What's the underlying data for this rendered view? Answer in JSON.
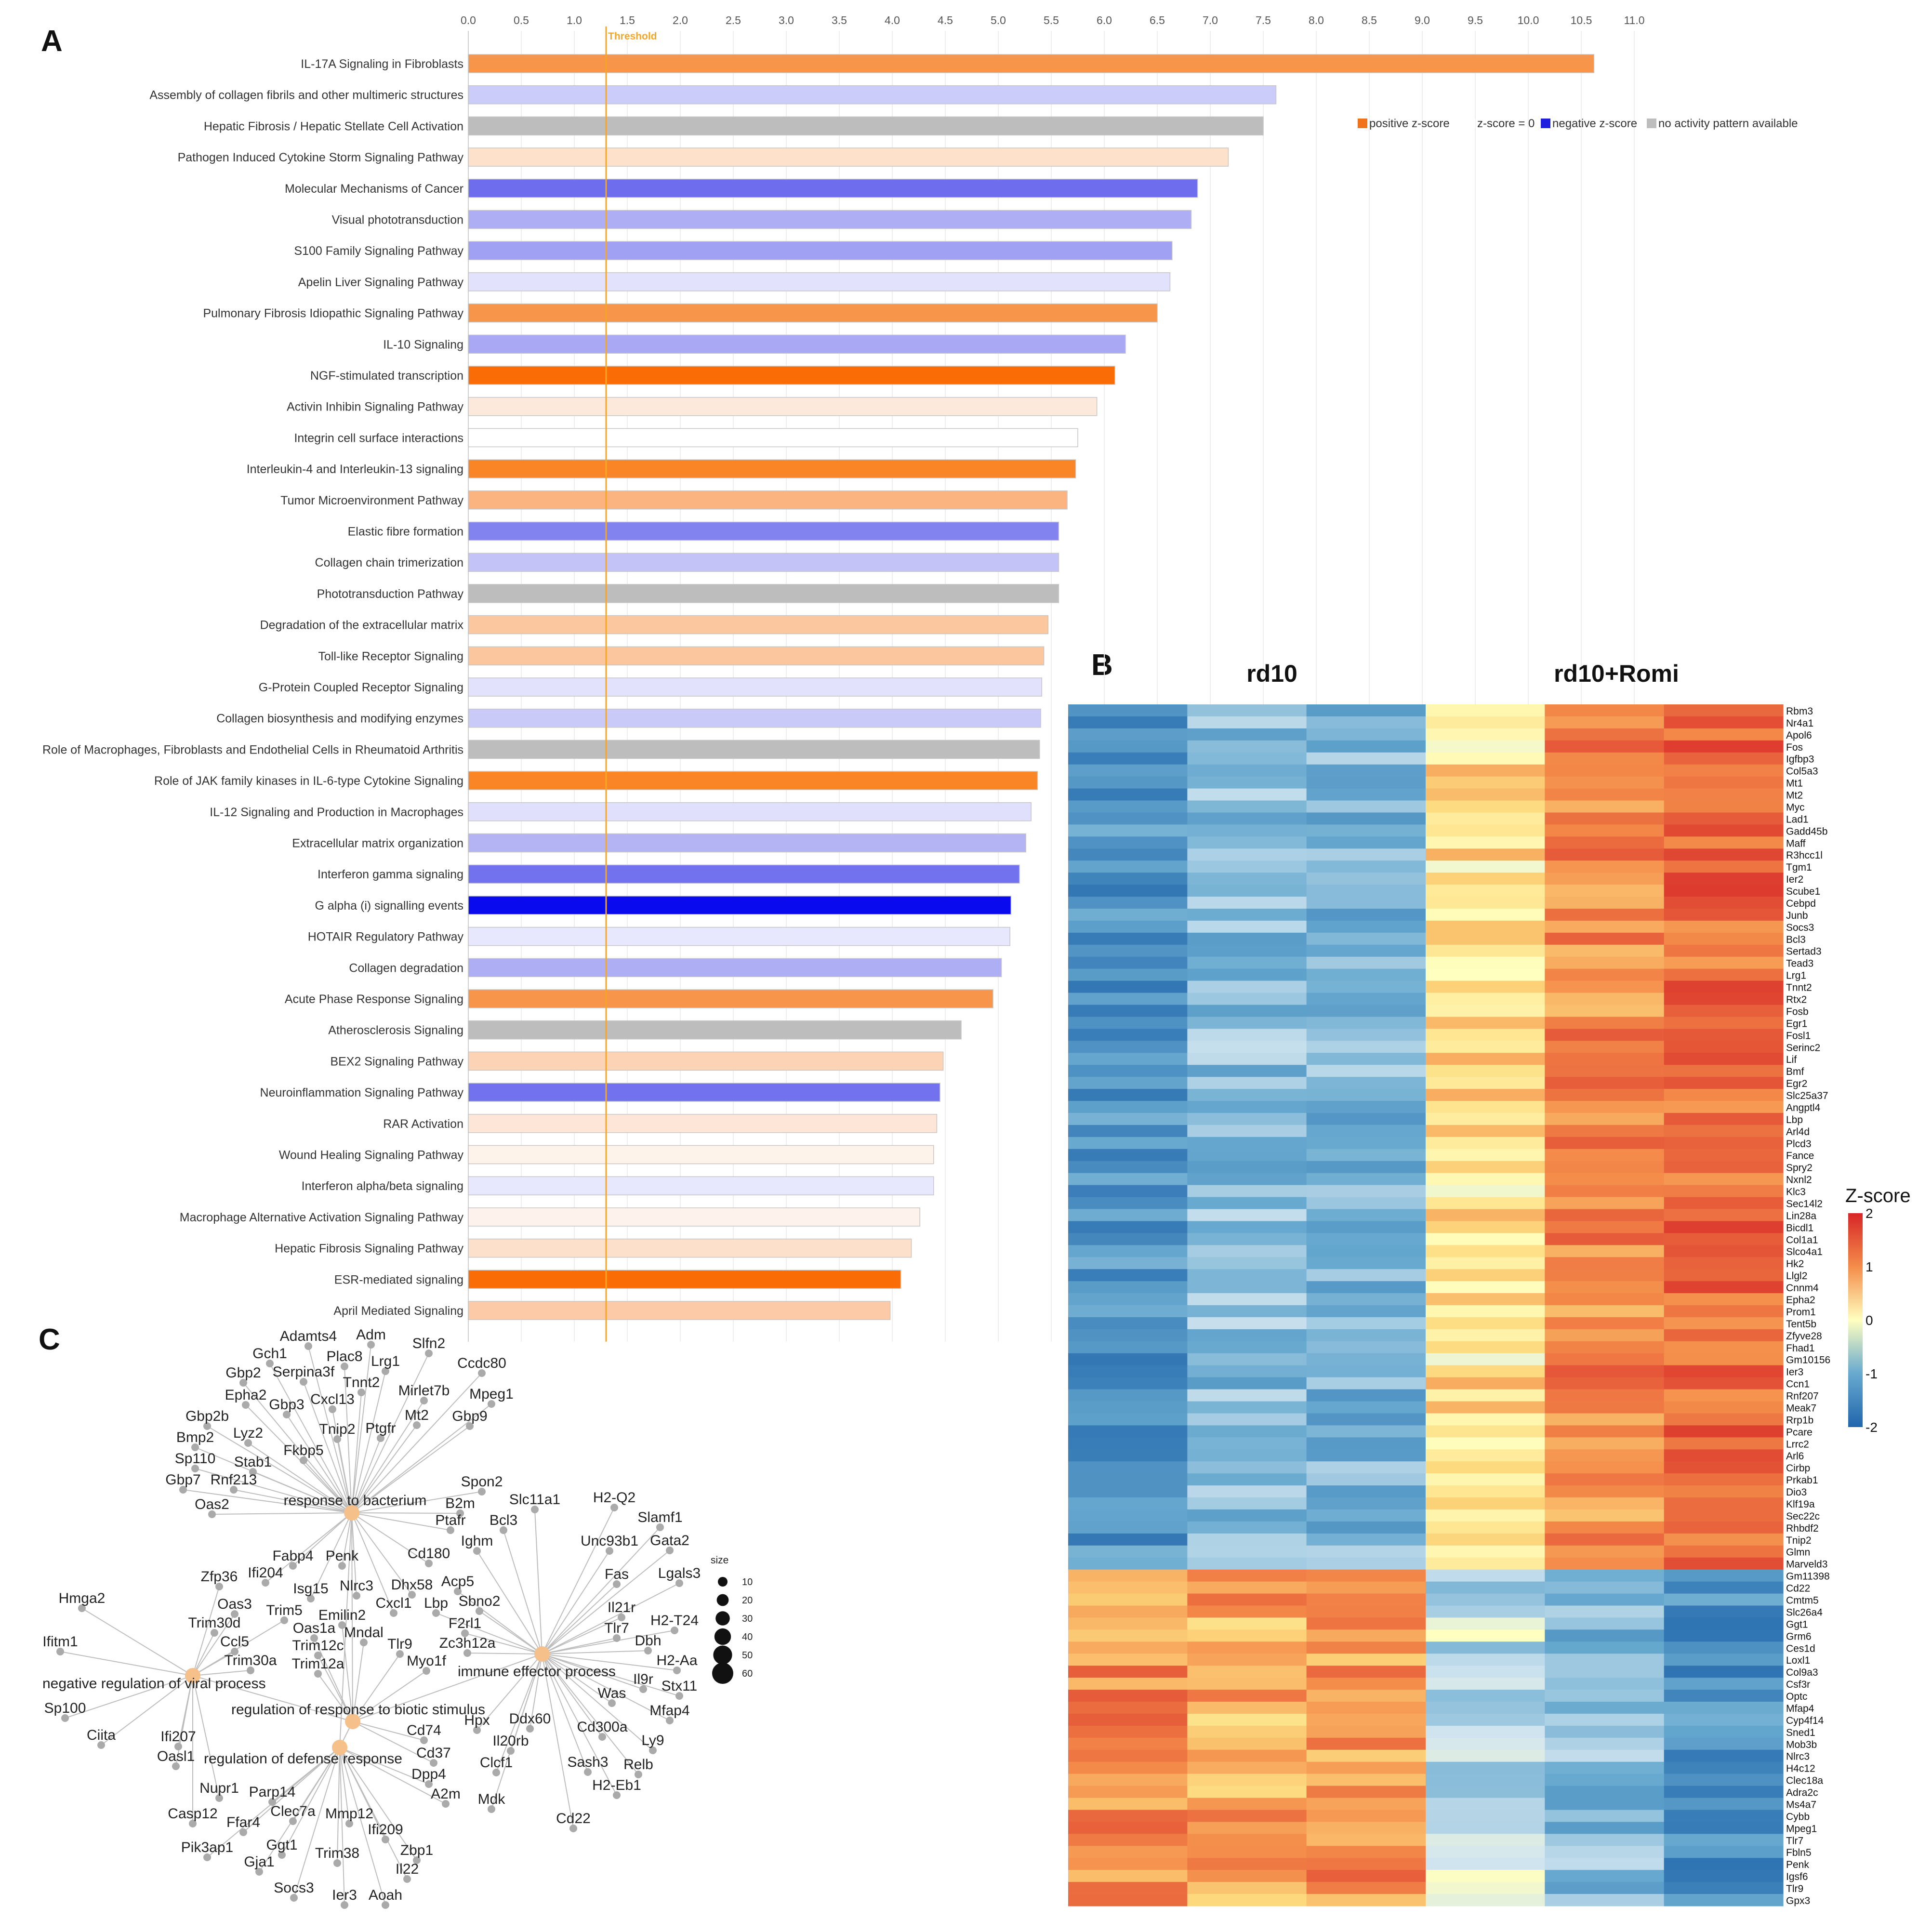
{
  "panels": {
    "a": "A",
    "b": "B",
    "c": "C"
  },
  "chart_data": [
    {
      "type": "bar",
      "orientation": "horizontal",
      "xlim": [
        0,
        11
      ],
      "xticks": [
        "0.0",
        "0.5",
        "1.0",
        "1.5",
        "2.0",
        "2.5",
        "3.0",
        "3.5",
        "4.0",
        "4.5",
        "5.0",
        "5.5",
        "6.0",
        "6.5",
        "7.0",
        "7.5",
        "8.0",
        "8.5",
        "9.0",
        "9.5",
        "10.0",
        "10.5",
        "11.0"
      ],
      "threshold": {
        "value": 1.3,
        "label": "Threshold",
        "color": "#f5a623"
      },
      "legend": {
        "placement": "top-right",
        "entries": [
          {
            "label": "positive z-score",
            "color": "#f0721a"
          },
          {
            "label": "z-score = 0",
            "color": "#ffffff"
          },
          {
            "label": "negative z-score",
            "color": "#1f1fe0"
          },
          {
            "label": "no activity pattern available",
            "color": "#bdbdbd"
          }
        ]
      },
      "categories": [
        "IL-17A Signaling in Fibroblasts",
        "Assembly of collagen fibrils and other multimeric structures",
        "Hepatic Fibrosis / Hepatic Stellate Cell Activation",
        "Pathogen Induced Cytokine Storm Signaling Pathway",
        "Molecular Mechanisms of Cancer",
        "Visual phototransduction",
        "S100 Family Signaling Pathway",
        "Apelin Liver Signaling Pathway",
        "Pulmonary Fibrosis Idiopathic Signaling Pathway",
        "IL-10 Signaling",
        "NGF-stimulated transcription",
        "Activin Inhibin Signaling Pathway",
        "Integrin cell surface interactions",
        "Interleukin-4 and Interleukin-13 signaling",
        "Tumor Microenvironment Pathway",
        "Elastic fibre formation",
        "Collagen chain trimerization",
        "Phototransduction Pathway",
        "Degradation of the extracellular matrix",
        "Toll-like Receptor Signaling",
        "G-Protein Coupled Receptor Signaling",
        "Collagen biosynthesis and modifying enzymes",
        "Role of Macrophages, Fibroblasts and Endothelial Cells in Rheumatoid Arthritis",
        "Role of JAK family kinases in IL-6-type Cytokine Signaling",
        "IL-12 Signaling and Production in Macrophages",
        "Extracellular matrix organization",
        "Interferon gamma signaling",
        "G alpha (i) signalling events",
        "HOTAIR Regulatory Pathway",
        "Collagen degradation",
        "Acute Phase Response Signaling",
        "Atherosclerosis Signaling",
        "BEX2 Signaling Pathway",
        "Neuroinflammation Signaling Pathway",
        "RAR Activation",
        "Wound Healing Signaling Pathway",
        "Interferon alpha/beta signaling",
        "Macrophage Alternative Activation Signaling Pathway",
        "Hepatic Fibrosis Signaling Pathway",
        "ESR-mediated signaling",
        "April Mediated Signaling"
      ],
      "values": [
        10.62,
        7.62,
        7.5,
        7.17,
        6.88,
        6.82,
        6.64,
        6.62,
        6.5,
        6.2,
        6.1,
        5.93,
        5.75,
        5.73,
        5.65,
        5.57,
        5.57,
        5.57,
        5.47,
        5.43,
        5.41,
        5.4,
        5.39,
        5.37,
        5.31,
        5.26,
        5.2,
        5.12,
        5.11,
        5.03,
        4.95,
        4.65,
        4.48,
        4.45,
        4.42,
        4.39,
        4.39,
        4.26,
        4.18,
        4.08,
        3.98
      ],
      "colors": [
        "#f7964a",
        "#ccccfa",
        "#bdbdbd",
        "#fde1ca",
        "#6d6dee",
        "#aeaef5",
        "#a1a1f3",
        "#e2e2fc",
        "#f7964a",
        "#a8a8f4",
        "#fa6c06",
        "#fde9dc",
        "#ffffff",
        "#fa8526",
        "#fbb47f",
        "#8383f0",
        "#c3c3f8",
        "#bdbdbd",
        "#fbc79f",
        "#fbc69d",
        "#e2e2fc",
        "#cacaf8",
        "#bdbdbd",
        "#fa8526",
        "#e0e0fc",
        "#b4b4f5",
        "#7272ee",
        "#0a0aee",
        "#e7e7fd",
        "#aeaef5",
        "#f7964a",
        "#bdbdbd",
        "#fdd3b5",
        "#7272ee",
        "#fde6d8",
        "#fef3ea",
        "#e7e7fd",
        "#fef3ec",
        "#fde0cb",
        "#fa6c06",
        "#fccaa6"
      ]
    },
    {
      "type": "heatmap",
      "group_labels": [
        "rd10",
        "rd10+Romi"
      ],
      "colorbar": {
        "title": "Z-score",
        "min": -2,
        "max": 2,
        "ticks": [
          "2",
          "1",
          "0",
          "-1",
          "-2"
        ]
      },
      "rows": [
        "Rbm3",
        "Nr4a1",
        "Apol6",
        "Fos",
        "Igfbp3",
        "Col5a3",
        "Mt1",
        "Mt2",
        "Myc",
        "Lad1",
        "Gadd45b",
        "Maff",
        "R3hcc1l",
        "Tgm1",
        "Ier2",
        "Scube1",
        "Cebpd",
        "Junb",
        "Socs3",
        "Bcl3",
        "Sertad3",
        "Tead3",
        "Lrg1",
        "Tnnt2",
        "Rtx2",
        "Fosb",
        "Egr1",
        "Fosl1",
        "Serinc2",
        "Lif",
        "Bmf",
        "Egr2",
        "Slc25a37",
        "Angptl4",
        "Lbp",
        "Arl4d",
        "Plcd3",
        "Fance",
        "Spry2",
        "Nxnl2",
        "Klc3",
        "Sec14l2",
        "Lin28a",
        "Bicdl1",
        "Col1a1",
        "Slco4a1",
        "Hk2",
        "Llgl2",
        "Cnnm4",
        "Epha2",
        "Prom1",
        "Tent5b",
        "Zfyve28",
        "Fhad1",
        "Gm10156",
        "Ier3",
        "Ccn1",
        "Rnf207",
        "Meak7",
        "Rrp1b",
        "Pcare",
        "Lrrc2",
        "Arl6",
        "Cirbp",
        "Prkab1",
        "Dio3",
        "Klf19a",
        "Sec22c",
        "Rhbdf2",
        "Tnip2",
        "Glmn",
        "Marveld3",
        "Gm11398",
        "Cd22",
        "Cmtm5",
        "Slc26a4",
        "Ggt1",
        "Grm6",
        "Ces1d",
        "Loxl1",
        "Col9a3",
        "Csf3r",
        "Optc",
        "Mfap4",
        "Cyp4f14",
        "Sned1",
        "Mob3b",
        "Nlrc3",
        "H4c12",
        "Clec18a",
        "Adra2c",
        "Ms4a7",
        "Cybb",
        "Mpeg1",
        "Tlr7",
        "Fbln5",
        "Penk",
        "Igsf6",
        "Tlr9",
        "Gpx3"
      ],
      "n_columns": 6,
      "pattern": "upper rows: low in rd10, high in rd10+Romi; lower rows: high in rd10, low in rd10+Romi"
    },
    {
      "type": "network",
      "size_legend": {
        "title": "size",
        "values": [
          "10",
          "20",
          "30",
          "40",
          "50",
          "60"
        ]
      },
      "terms": [
        "response to bacterium",
        "negative regulation of viral process",
        "regulation of response to biotic stimulus",
        "immune effector process",
        "regulation of defense response"
      ],
      "genes": [
        "Adamts4",
        "Adm",
        "Gch1",
        "Plac8",
        "Lrg1",
        "Slfn2",
        "Ccdc80",
        "Gbp2",
        "Serpina3f",
        "Tnnt2",
        "Mirlet7b",
        "Mpeg1",
        "Epha2",
        "Gbp3",
        "Cxcl13",
        "Mt2",
        "Gbp9",
        "Gbp2b",
        "Lyz2",
        "Tnip2",
        "Ptgfr",
        "Bmp2",
        "Fkbp5",
        "Sp110",
        "Stab1",
        "Gbp7",
        "Rnf213",
        "Oas2",
        "Spon2",
        "Slc11a1",
        "B2m",
        "H2-Q2",
        "Bcl3",
        "Ptafr",
        "Slamf1",
        "Ighm",
        "Unc93b1",
        "Gata2",
        "Fabp4",
        "Penk",
        "Cd180",
        "Fas",
        "Lgals3",
        "Zfp36",
        "Ifi204",
        "Isg15",
        "Nlrc3",
        "Dhx58",
        "Acp5",
        "Il21r",
        "Oas3",
        "Trim5",
        "Emilin2",
        "Cxcl1",
        "Lbp",
        "Sbno2",
        "Tlr7",
        "H2-T24",
        "Trim30d",
        "Oas1a",
        "Mndal",
        "F2rl1",
        "Dbh",
        "Hmga2",
        "Ccl5",
        "Trim12c",
        "Tlr9",
        "Zc3h12a",
        "H2-Aa",
        "Ifitm1",
        "Trim30a",
        "Trim12a",
        "Myo1f",
        "Il9r",
        "Stx11",
        "Was",
        "Mfap4",
        "Sp100",
        "Ciita",
        "Hpx",
        "Ddx60",
        "Cd300a",
        "Ly9",
        "Ifi207",
        "Oasl1",
        "Cd74",
        "Il20rb",
        "Cd37",
        "Clcf1",
        "Sash3",
        "Relb",
        "Dpp4",
        "A2m",
        "H2-Eb1",
        "Nupr1",
        "Parp14",
        "Mdk",
        "Cd22",
        "Casp12",
        "Clec7a",
        "Mmp12",
        "Ifi209",
        "Ffar4",
        "Pik3ap1",
        "Ggt1",
        "Trim38",
        "Zbp1",
        "Gja1",
        "Il22",
        "Socs3",
        "Ier3",
        "Aoah"
      ]
    }
  ]
}
